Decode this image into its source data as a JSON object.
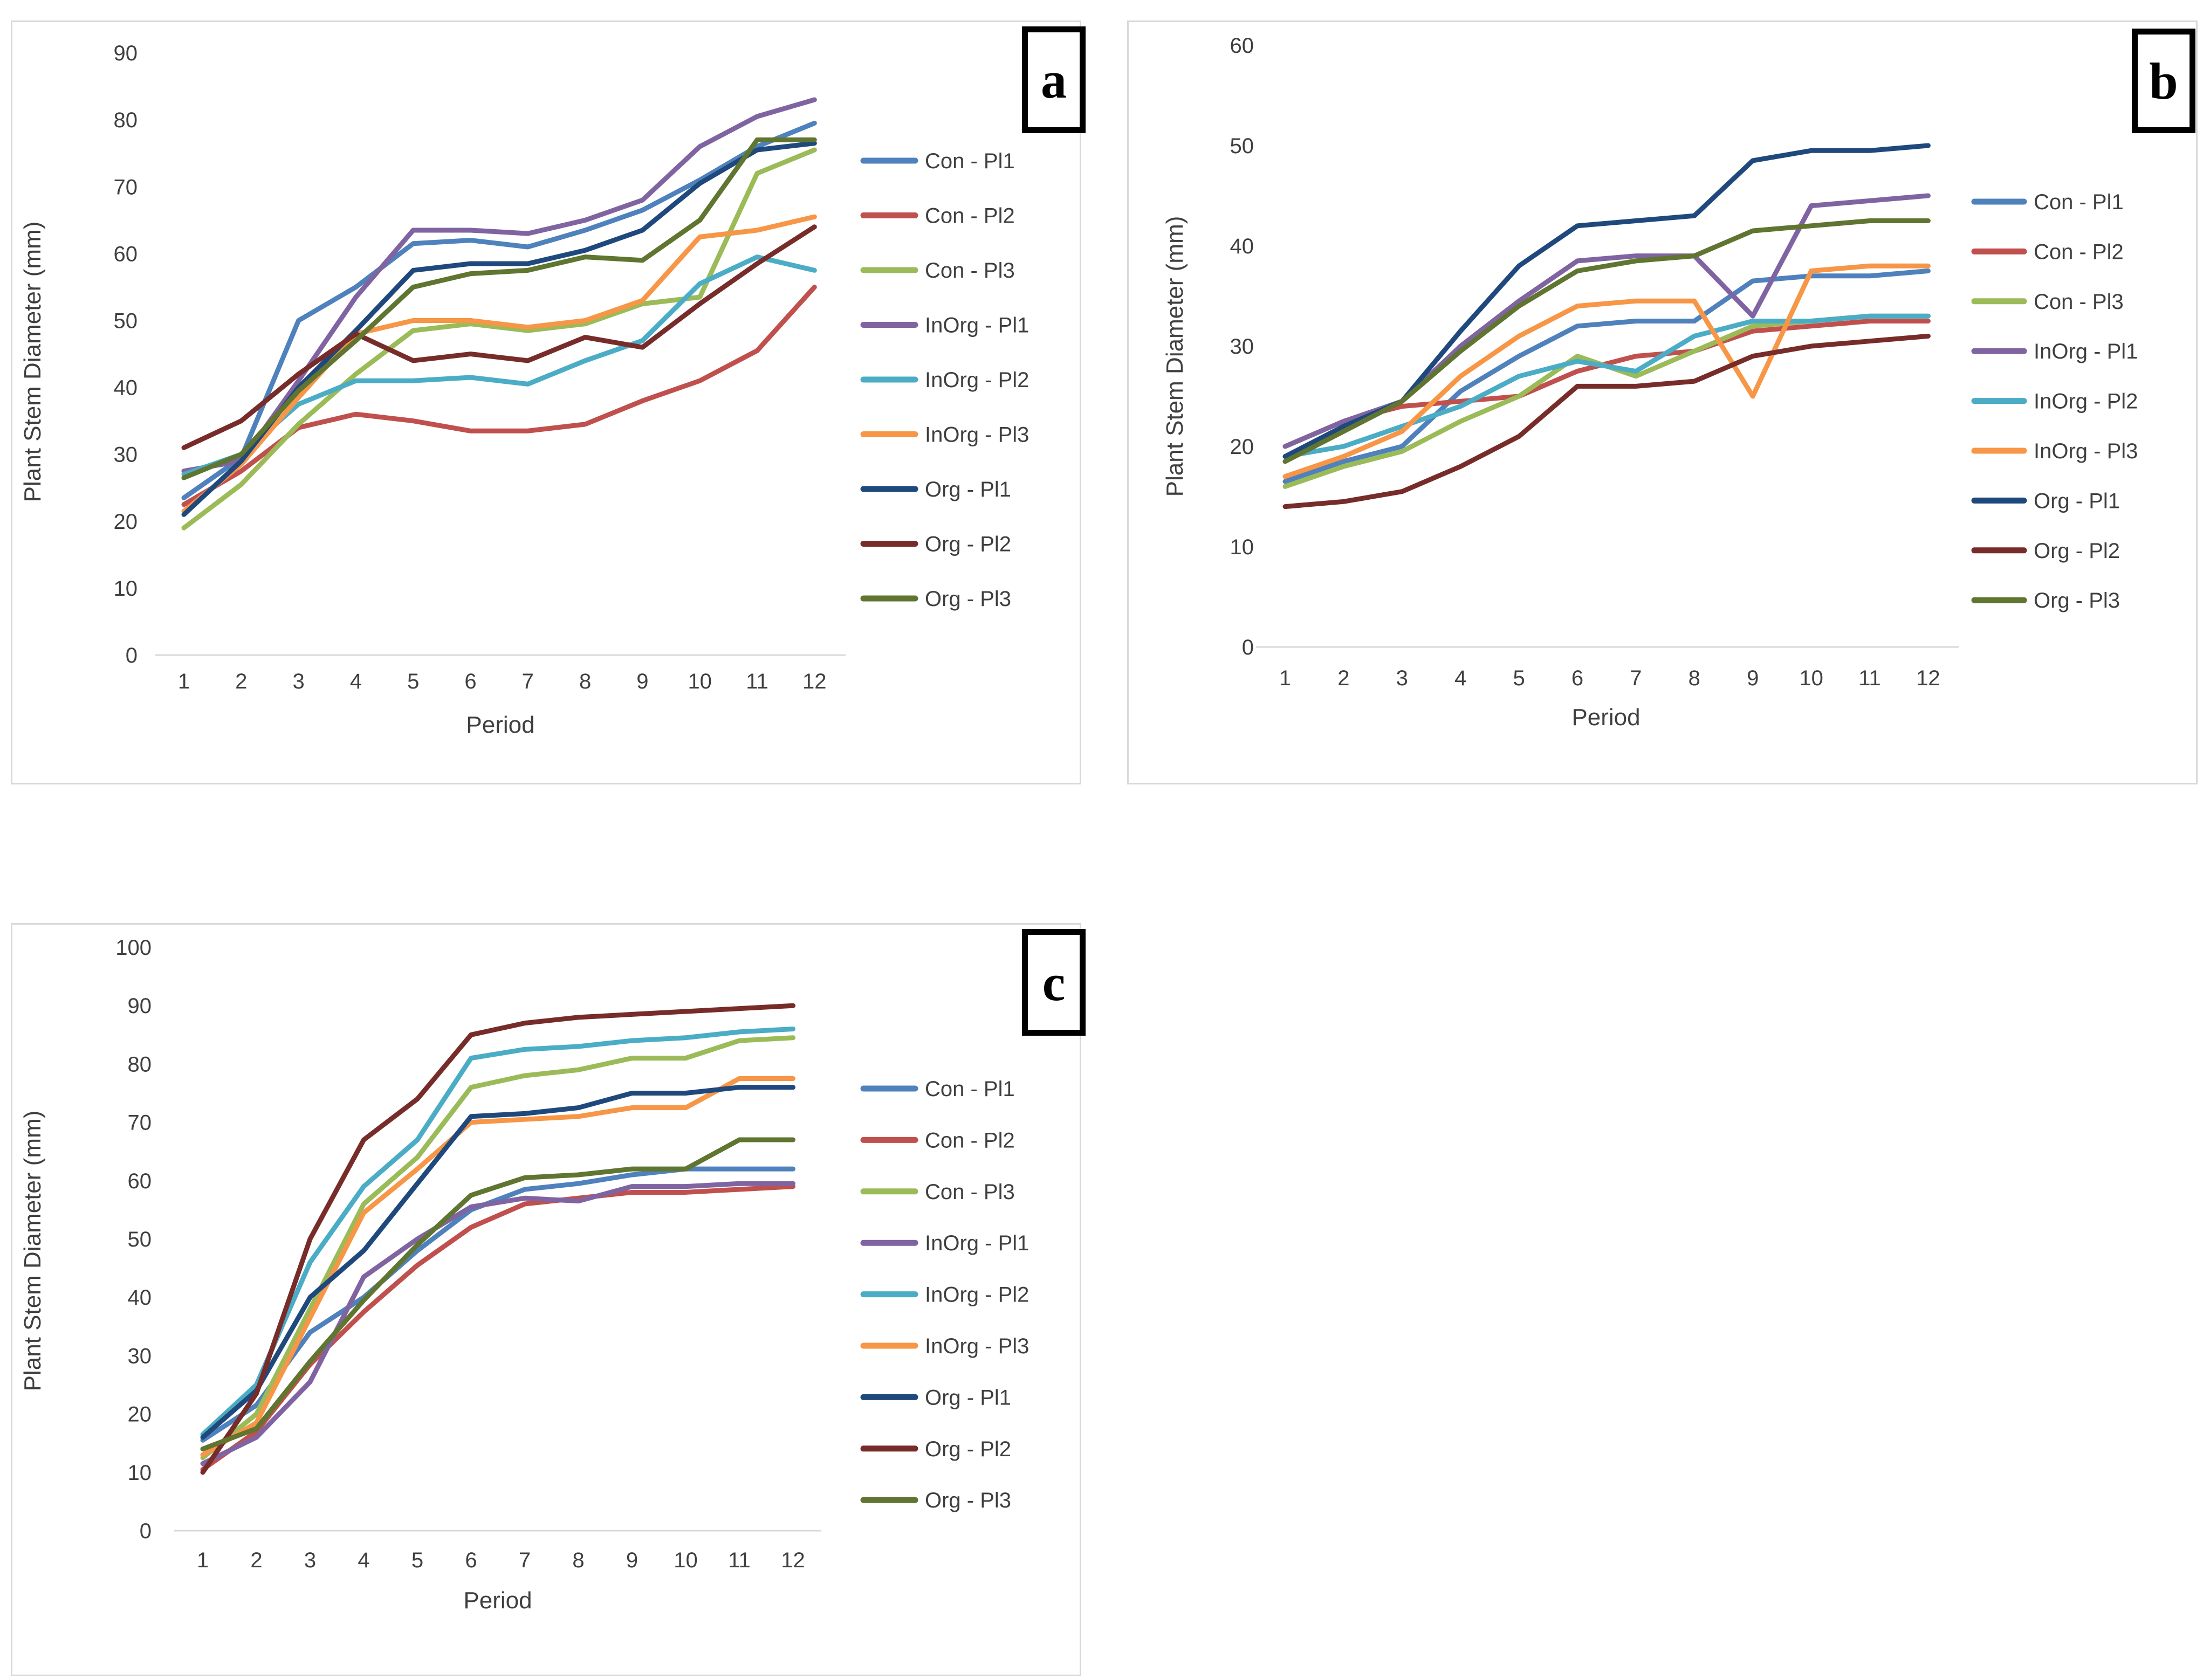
{
  "panels": [
    {
      "letter": "a"
    },
    {
      "letter": "b"
    },
    {
      "letter": "c"
    }
  ],
  "accent_colors": {
    "baseline": "#d9d9d9",
    "text": "#3f3f3f",
    "panel_border": "#d9d9d9",
    "letter_box_border": "#000000"
  },
  "chart_data": [
    {
      "type": "line",
      "panel": "a",
      "title": "",
      "xlabel": "Period",
      "ylabel": "Plant Stem Diameter (mm)",
      "categories": [
        "1",
        "2",
        "3",
        "4",
        "5",
        "6",
        "7",
        "8",
        "9",
        "10",
        "11",
        "12"
      ],
      "ylim": [
        0,
        90
      ],
      "ytick_step": 10,
      "grid": "baseline-only",
      "legend_position": "right",
      "series": [
        {
          "name": "Con - Pl1",
          "color": "#4F81BD",
          "values": [
            23.5,
            29.5,
            50,
            55,
            61.5,
            62,
            61,
            63.5,
            66.5,
            71,
            76,
            79.5
          ]
        },
        {
          "name": "Con - Pl2",
          "color": "#C0504D",
          "values": [
            22.5,
            27.5,
            34,
            36,
            35,
            33.5,
            33.5,
            34.5,
            38,
            41,
            45.5,
            55
          ]
        },
        {
          "name": "Con - Pl3",
          "color": "#9BBB59",
          "values": [
            19,
            25.5,
            34.5,
            42,
            48.5,
            49.5,
            48.5,
            49.5,
            52.5,
            53.5,
            72,
            75.5
          ]
        },
        {
          "name": "InOrg - Pl1",
          "color": "#8064A2",
          "values": [
            27.5,
            29,
            41,
            53.5,
            63.5,
            63.5,
            63,
            65,
            68,
            76,
            80.5,
            83
          ]
        },
        {
          "name": "InOrg - Pl2",
          "color": "#4BACC6",
          "values": [
            27,
            30,
            37.5,
            41,
            41,
            41.5,
            40.5,
            44,
            47,
            55.5,
            59.5,
            57.5
          ]
        },
        {
          "name": "InOrg - Pl3",
          "color": "#F79646",
          "values": [
            21.5,
            28.5,
            38.5,
            48,
            50,
            50,
            49,
            50,
            53,
            62.5,
            63.5,
            65.5
          ]
        },
        {
          "name": "Org - Pl1",
          "color": "#1F497D",
          "values": [
            21,
            29,
            40,
            48.5,
            57.5,
            58.5,
            58.5,
            60.5,
            63.5,
            70.5,
            75.5,
            76.5
          ]
        },
        {
          "name": "Org - Pl2",
          "color": "#772C2A",
          "values": [
            31,
            35,
            42,
            48,
            44,
            45,
            44,
            47.5,
            46,
            52.5,
            58.5,
            64
          ]
        },
        {
          "name": "Org - Pl3",
          "color": "#5F7530",
          "values": [
            26.5,
            30,
            39.5,
            47,
            55,
            57,
            57.5,
            59.5,
            59,
            65,
            77,
            77
          ]
        }
      ]
    },
    {
      "type": "line",
      "panel": "b",
      "title": "",
      "xlabel": "Period",
      "ylabel": "Plant Stem Diameter (mm)",
      "categories": [
        "1",
        "2",
        "3",
        "4",
        "5",
        "6",
        "7",
        "8",
        "9",
        "10",
        "11",
        "12"
      ],
      "ylim": [
        0,
        60
      ],
      "ytick_step": 10,
      "grid": "baseline-only",
      "legend_position": "right",
      "series": [
        {
          "name": "Con - Pl1",
          "color": "#4F81BD",
          "values": [
            16.5,
            18.5,
            20,
            25.5,
            29,
            32,
            32.5,
            32.5,
            36.5,
            37,
            37,
            37.5
          ]
        },
        {
          "name": "Con - Pl2",
          "color": "#C0504D",
          "values": [
            20,
            22.5,
            24,
            24.5,
            25,
            27.5,
            29,
            29.5,
            31.5,
            32,
            32.5,
            32.5
          ]
        },
        {
          "name": "Con - Pl3",
          "color": "#9BBB59",
          "values": [
            16,
            18,
            19.5,
            22.5,
            25,
            29,
            27,
            29.5,
            32,
            32.5,
            33,
            33
          ]
        },
        {
          "name": "InOrg - Pl1",
          "color": "#8064A2",
          "values": [
            20,
            22.5,
            24.5,
            30,
            34.5,
            38.5,
            39,
            39,
            33,
            44,
            44.5,
            45
          ]
        },
        {
          "name": "InOrg - Pl2",
          "color": "#4BACC6",
          "values": [
            19,
            20,
            22,
            24,
            27,
            28.5,
            27.5,
            31,
            32.5,
            32.5,
            33,
            33
          ]
        },
        {
          "name": "InOrg - Pl3",
          "color": "#F79646",
          "values": [
            17,
            19,
            21.5,
            27,
            31,
            34,
            34.5,
            34.5,
            25,
            37.5,
            38,
            38
          ]
        },
        {
          "name": "Org - Pl1",
          "color": "#1F497D",
          "values": [
            19,
            22,
            24.5,
            31.5,
            38,
            42,
            42.5,
            43,
            48.5,
            49.5,
            49.5,
            50
          ]
        },
        {
          "name": "Org - Pl2",
          "color": "#772C2A",
          "values": [
            14,
            14.5,
            15.5,
            18,
            21,
            26,
            26,
            26.5,
            29,
            30,
            30.5,
            31
          ]
        },
        {
          "name": "Org - Pl3",
          "color": "#5F7530",
          "values": [
            18.5,
            21.5,
            24.5,
            29.5,
            34,
            37.5,
            38.5,
            39,
            41.5,
            42,
            42.5,
            42.5
          ]
        }
      ]
    },
    {
      "type": "line",
      "panel": "c",
      "title": "",
      "xlabel": "Period",
      "ylabel": "Plant Stem Diameter (mm)",
      "categories": [
        "1",
        "2",
        "3",
        "4",
        "5",
        "6",
        "7",
        "8",
        "9",
        "10",
        "11",
        "12"
      ],
      "ylim": [
        0,
        100
      ],
      "ytick_step": 10,
      "grid": "baseline-only",
      "legend_position": "right",
      "series": [
        {
          "name": "Con - Pl1",
          "color": "#4F81BD",
          "values": [
            15.5,
            21.5,
            34,
            40,
            48,
            55,
            58.5,
            59.5,
            61,
            62,
            62,
            62
          ]
        },
        {
          "name": "Con - Pl2",
          "color": "#C0504D",
          "values": [
            10.5,
            17,
            28.5,
            37.5,
            45.5,
            52,
            56,
            57,
            58,
            58,
            58.5,
            59
          ]
        },
        {
          "name": "Con - Pl3",
          "color": "#9BBB59",
          "values": [
            12.5,
            20,
            38,
            56,
            64,
            76,
            78,
            79,
            81,
            81,
            84,
            84.5
          ]
        },
        {
          "name": "InOrg - Pl1",
          "color": "#8064A2",
          "values": [
            11.5,
            16,
            25.5,
            43.5,
            50,
            55.5,
            57,
            56.5,
            59,
            59,
            59.5,
            59.5
          ]
        },
        {
          "name": "InOrg - Pl2",
          "color": "#4BACC6",
          "values": [
            16.5,
            25,
            46,
            59,
            67,
            81,
            82.5,
            83,
            84,
            84.5,
            85.5,
            86
          ]
        },
        {
          "name": "InOrg - Pl3",
          "color": "#F79646",
          "values": [
            13,
            18.5,
            36.5,
            54.5,
            62,
            70,
            70.5,
            71,
            72.5,
            72.5,
            77.5,
            77.5
          ]
        },
        {
          "name": "Org - Pl1",
          "color": "#1F497D",
          "values": [
            16,
            24,
            40,
            48,
            59.5,
            71,
            71.5,
            72.5,
            75,
            75,
            76,
            76
          ]
        },
        {
          "name": "Org - Pl2",
          "color": "#772C2A",
          "values": [
            10,
            23.5,
            50,
            67,
            74,
            85,
            87,
            88,
            88.5,
            89,
            89.5,
            90
          ]
        },
        {
          "name": "Org - Pl3",
          "color": "#5F7530",
          "values": [
            14,
            17.5,
            29,
            39.5,
            49,
            57.5,
            60.5,
            61,
            62,
            62,
            67,
            67
          ]
        }
      ]
    }
  ]
}
